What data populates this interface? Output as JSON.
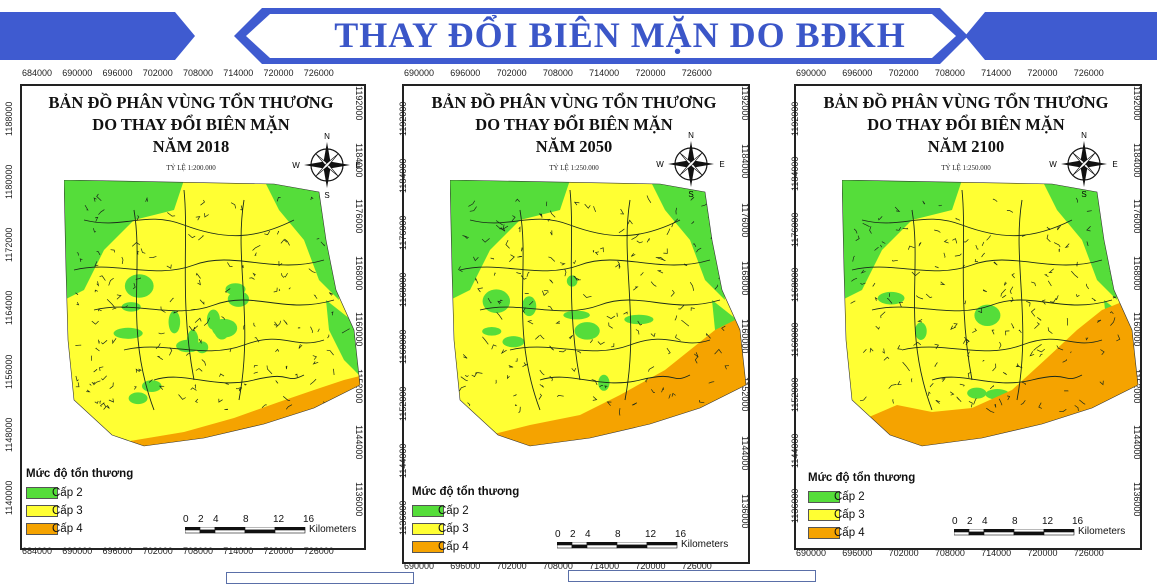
{
  "banner": {
    "title": "THAY ĐỔI BIÊN MẶN DO BĐKH"
  },
  "colors": {
    "cap2": "#55dd3a",
    "cap3": "#ffff33",
    "cap4": "#f5a300",
    "banner": "#3b56c8"
  },
  "maps": [
    {
      "title_line1": "BẢN ĐỒ PHÂN VÙNG TỔN THƯƠNG",
      "title_line2": "DO THAY ĐỔI BIÊN MẶN",
      "title_line3": "NĂM 2018",
      "scale_note": "TỶ LỆ 1:200.000",
      "x_ticks": [
        "684000",
        "690000",
        "696000",
        "702000",
        "708000",
        "714000",
        "720000",
        "726000"
      ],
      "y_ticks_left": [
        "1188000",
        "1180000",
        "1172000",
        "1164000",
        "1156000",
        "1148000",
        "1140000"
      ],
      "y_ticks_right": [
        "1192000",
        "1184000",
        "1176000",
        "1168000",
        "1160000",
        "1152000",
        "1144000",
        "1136000"
      ]
    },
    {
      "title_line1": "BẢN ĐỒ PHÂN VÙNG TỔN THƯƠNG",
      "title_line2": "DO THAY ĐỔI BIÊN MẶN",
      "title_line3": "NĂM 2050",
      "scale_note": "TỶ LỆ 1:250.000",
      "x_ticks": [
        "690000",
        "696000",
        "702000",
        "708000",
        "714000",
        "720000",
        "726000"
      ],
      "y_ticks_left": [
        "1192000",
        "1184000",
        "1176000",
        "1168000",
        "1160000",
        "1152000",
        "1144000",
        "1136000"
      ],
      "y_ticks_right": [
        "1192000",
        "1184000",
        "1176000",
        "1168000",
        "1160000",
        "1152000",
        "1144000",
        "1136000"
      ]
    },
    {
      "title_line1": "BẢN ĐỒ PHÂN VÙNG TỔN THƯƠNG",
      "title_line2": "DO THAY ĐỔI BIÊN MẶN",
      "title_line3": "NĂM 2100",
      "scale_note": "TỶ LỆ 1:250.000",
      "x_ticks": [
        "690000",
        "696000",
        "702000",
        "708000",
        "714000",
        "720000",
        "726000"
      ],
      "y_ticks_left": [
        "1192000",
        "1184000",
        "1176000",
        "1168000",
        "1160000",
        "1152000",
        "1144000",
        "1136000"
      ],
      "y_ticks_right": [
        "1192000",
        "1184000",
        "1176000",
        "1168000",
        "1160000",
        "1152000",
        "1144000",
        "1136000"
      ]
    }
  ],
  "legend": {
    "title": "Mức độ tổn thương",
    "items": [
      "Cấp 2",
      "Cấp 3",
      "Cấp 4"
    ]
  },
  "scalebar": {
    "ticks": [
      "0",
      "2",
      "4",
      "8",
      "12",
      "16"
    ],
    "unit": "Kilometers"
  },
  "compass": {
    "n": "N",
    "s": "S",
    "e": "E",
    "w": "W"
  }
}
